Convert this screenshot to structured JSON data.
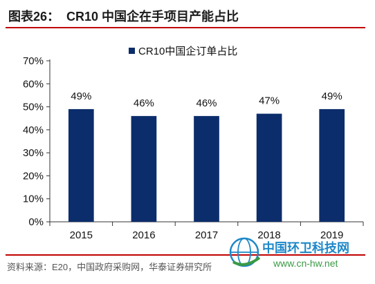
{
  "header": {
    "figure_label": "图表26：",
    "title": "CR10 中国企在手项目产能占比"
  },
  "chart_data": {
    "type": "bar",
    "categories": [
      "2015",
      "2016",
      "2017",
      "2018",
      "2019"
    ],
    "series": [
      {
        "name": "CR10中国企订单占比",
        "values": [
          49,
          46,
          46,
          47,
          49
        ],
        "color": "#0c2d6b"
      }
    ],
    "data_labels": [
      "49%",
      "46%",
      "46%",
      "47%",
      "49%"
    ],
    "y_ticks": [
      "0%",
      "10%",
      "20%",
      "30%",
      "40%",
      "50%",
      "60%",
      "70%"
    ],
    "ylim": [
      0,
      70
    ],
    "y_unit": "%",
    "legend_position": "top-center",
    "grid": false
  },
  "source": "资料来源：E20，中国政府采购网，华泰证券研究所",
  "watermark": {
    "title": "中国环卫科技网",
    "url": "www.cn-hw.net"
  }
}
